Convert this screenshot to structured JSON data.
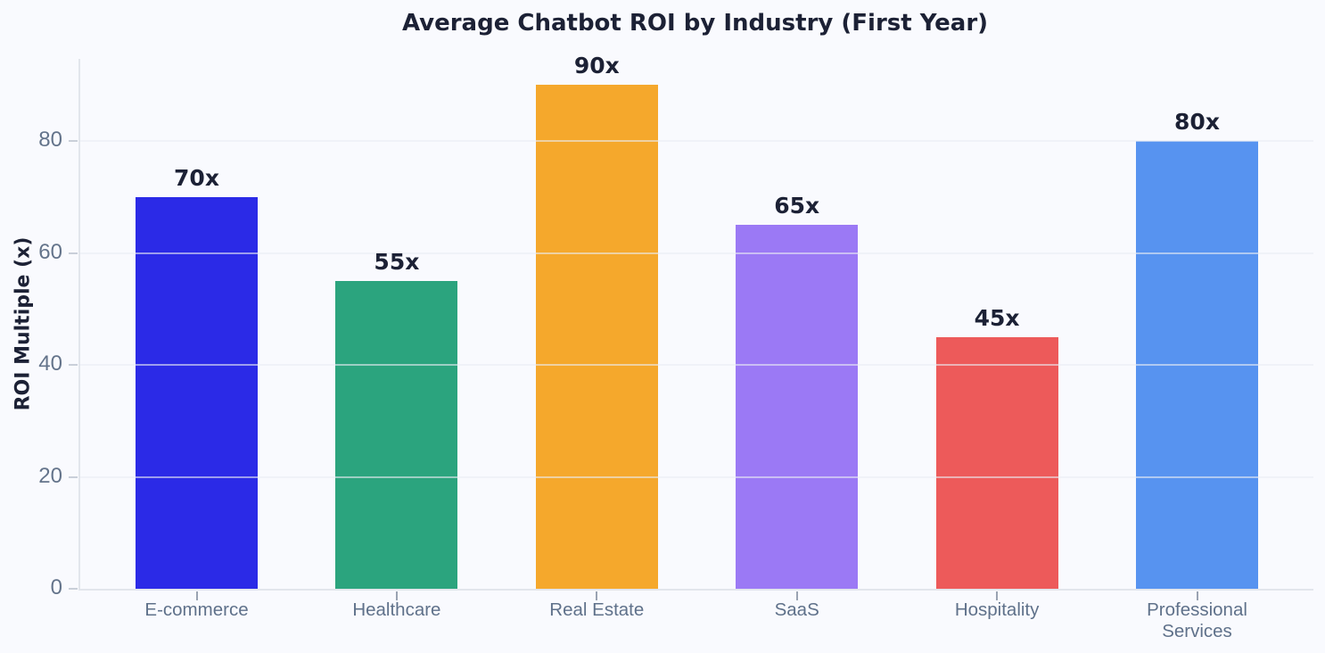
{
  "chart_data": {
    "type": "bar",
    "title": "Average Chatbot ROI by Industry (First Year)",
    "categories": [
      "E-commerce",
      "Healthcare",
      "Real Estate",
      "SaaS",
      "Hospitality",
      "Professional\nServices"
    ],
    "values": [
      70,
      55,
      90,
      65,
      45,
      80
    ],
    "value_labels": [
      "70x",
      "55x",
      "90x",
      "65x",
      "45x",
      "80x"
    ],
    "bar_colors": [
      "#2b2ae7",
      "#2ba47e",
      "#f5a82c",
      "#9b79f5",
      "#ed5a5a",
      "#5793f0"
    ],
    "xlabel": "",
    "ylabel": "ROI Multiple (x)",
    "yticks": [
      0,
      20,
      40,
      60,
      80
    ],
    "ylim": [
      0,
      94.7
    ],
    "grid": true,
    "legend": false,
    "colors": {
      "background": "#f9fafe",
      "title_text": "#1c2135",
      "value_label_text": "#1c2135",
      "tick_text": "#64748b",
      "gridline": "#edf0f6",
      "spine": "#e2e6ec"
    }
  }
}
